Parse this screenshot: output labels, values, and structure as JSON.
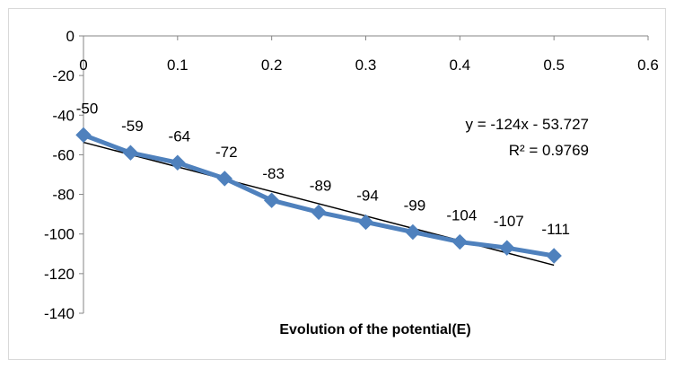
{
  "chart_data": {
    "type": "line",
    "title": "",
    "xlabel": "Evolution of the potential(E)",
    "ylabel": "",
    "xlim": [
      0,
      0.6
    ],
    "ylim": [
      -140,
      0
    ],
    "x_ticks": [
      "0",
      "0.1",
      "0.2",
      "0.3",
      "0.4",
      "0.5",
      "0.6"
    ],
    "y_ticks": [
      "0",
      "-20",
      "-40",
      "-60",
      "-80",
      "-100",
      "-120",
      "-140"
    ],
    "grid": false,
    "legend": "none",
    "series": [
      {
        "color": "#4f81bd",
        "marker": "diamond",
        "x": [
          0,
          0.05,
          0.1,
          0.15,
          0.2,
          0.25,
          0.3,
          0.35,
          0.4,
          0.45,
          0.5
        ],
        "values": [
          -50,
          -59,
          -64,
          -72,
          -83,
          -89,
          -94,
          -99,
          -104,
          -107,
          -111
        ],
        "labels": [
          "-50",
          "-59",
          "-64",
          "-72",
          "-83",
          "-89",
          "-94",
          "-99",
          "-104",
          "-107",
          "-111"
        ]
      }
    ],
    "trendline": {
      "type": "linear",
      "slope": -124,
      "intercept": -53.727,
      "x_range": [
        0,
        0.5
      ],
      "color": "#000000",
      "equation": "y = -124x - 53.727",
      "r2_label": "R² = 0.9769"
    }
  }
}
